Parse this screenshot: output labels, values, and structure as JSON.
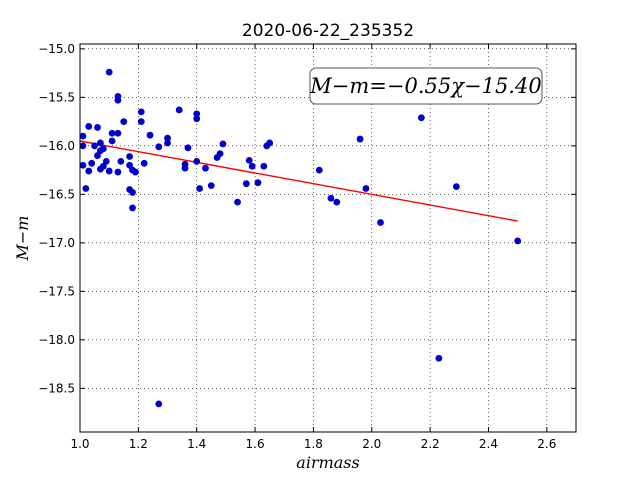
{
  "chart_data": {
    "type": "scatter",
    "title": "2020-06-22_235352",
    "xlabel": "airmass",
    "ylabel": "M−m",
    "annotation": "M−m=−0.55χ−15.40",
    "xlim": [
      1.0,
      2.7
    ],
    "ylim": [
      -18.95,
      -14.95
    ],
    "y_inverted": true,
    "xticks": [
      1.0,
      1.2,
      1.4,
      1.6,
      1.8,
      2.0,
      2.2,
      2.4,
      2.6
    ],
    "xtick_labels": [
      "1.0",
      "1.2",
      "1.4",
      "1.6",
      "1.8",
      "2.0",
      "2.2",
      "2.4",
      "2.6"
    ],
    "yticks": [
      -15.0,
      -15.5,
      -16.0,
      -16.5,
      -17.0,
      -17.5,
      -18.0,
      -18.5
    ],
    "ytick_labels": [
      "−15.0",
      "−15.5",
      "−16.0",
      "−16.5",
      "−17.0",
      "−17.5",
      "−18.0",
      "−18.5"
    ],
    "grid": true,
    "colors": {
      "points": "#0000cc",
      "fit_line": "#ff0000"
    },
    "points": [
      [
        1.01,
        -15.9
      ],
      [
        1.01,
        -16.0
      ],
      [
        1.01,
        -16.2
      ],
      [
        1.02,
        -16.44
      ],
      [
        1.03,
        -16.26
      ],
      [
        1.03,
        -15.8
      ],
      [
        1.04,
        -16.18
      ],
      [
        1.05,
        -16.0
      ],
      [
        1.06,
        -15.81
      ],
      [
        1.06,
        -16.1
      ],
      [
        1.07,
        -16.05
      ],
      [
        1.07,
        -15.97
      ],
      [
        1.07,
        -16.24
      ],
      [
        1.08,
        -16.21
      ],
      [
        1.08,
        -16.03
      ],
      [
        1.09,
        -16.16
      ],
      [
        1.1,
        -15.24
      ],
      [
        1.1,
        -16.26
      ],
      [
        1.11,
        -15.87
      ],
      [
        1.11,
        -15.95
      ],
      [
        1.13,
        -15.87
      ],
      [
        1.13,
        -16.27
      ],
      [
        1.13,
        -15.53
      ],
      [
        1.13,
        -15.49
      ],
      [
        1.14,
        -16.16
      ],
      [
        1.15,
        -15.75
      ],
      [
        1.17,
        -16.2
      ],
      [
        1.17,
        -16.11
      ],
      [
        1.17,
        -16.45
      ],
      [
        1.18,
        -16.25
      ],
      [
        1.18,
        -16.48
      ],
      [
        1.18,
        -16.64
      ],
      [
        1.19,
        -16.27
      ],
      [
        1.21,
        -15.65
      ],
      [
        1.21,
        -15.75
      ],
      [
        1.22,
        -16.18
      ],
      [
        1.24,
        -15.89
      ],
      [
        1.27,
        -16.01
      ],
      [
        1.27,
        -18.66
      ],
      [
        1.3,
        -15.97
      ],
      [
        1.3,
        -15.92
      ],
      [
        1.34,
        -15.63
      ],
      [
        1.36,
        -16.19
      ],
      [
        1.36,
        -16.23
      ],
      [
        1.37,
        -16.02
      ],
      [
        1.4,
        -15.72
      ],
      [
        1.4,
        -15.67
      ],
      [
        1.4,
        -16.16
      ],
      [
        1.41,
        -16.44
      ],
      [
        1.43,
        -16.23
      ],
      [
        1.45,
        -16.41
      ],
      [
        1.47,
        -16.12
      ],
      [
        1.48,
        -16.08
      ],
      [
        1.49,
        -15.98
      ],
      [
        1.54,
        -16.58
      ],
      [
        1.57,
        -16.39
      ],
      [
        1.58,
        -16.15
      ],
      [
        1.59,
        -16.21
      ],
      [
        1.61,
        -16.38
      ],
      [
        1.63,
        -16.21
      ],
      [
        1.64,
        -16.0
      ],
      [
        1.65,
        -15.97
      ],
      [
        1.82,
        -16.25
      ],
      [
        1.86,
        -16.54
      ],
      [
        1.88,
        -16.58
      ],
      [
        1.96,
        -15.93
      ],
      [
        1.98,
        -16.44
      ],
      [
        2.03,
        -16.79
      ],
      [
        2.17,
        -15.71
      ],
      [
        2.23,
        -18.19
      ],
      [
        2.29,
        -16.42
      ],
      [
        2.5,
        -16.98
      ]
    ],
    "fit_line": {
      "slope": -0.55,
      "intercept": -15.4,
      "x_range": [
        1.0,
        2.5
      ]
    }
  }
}
